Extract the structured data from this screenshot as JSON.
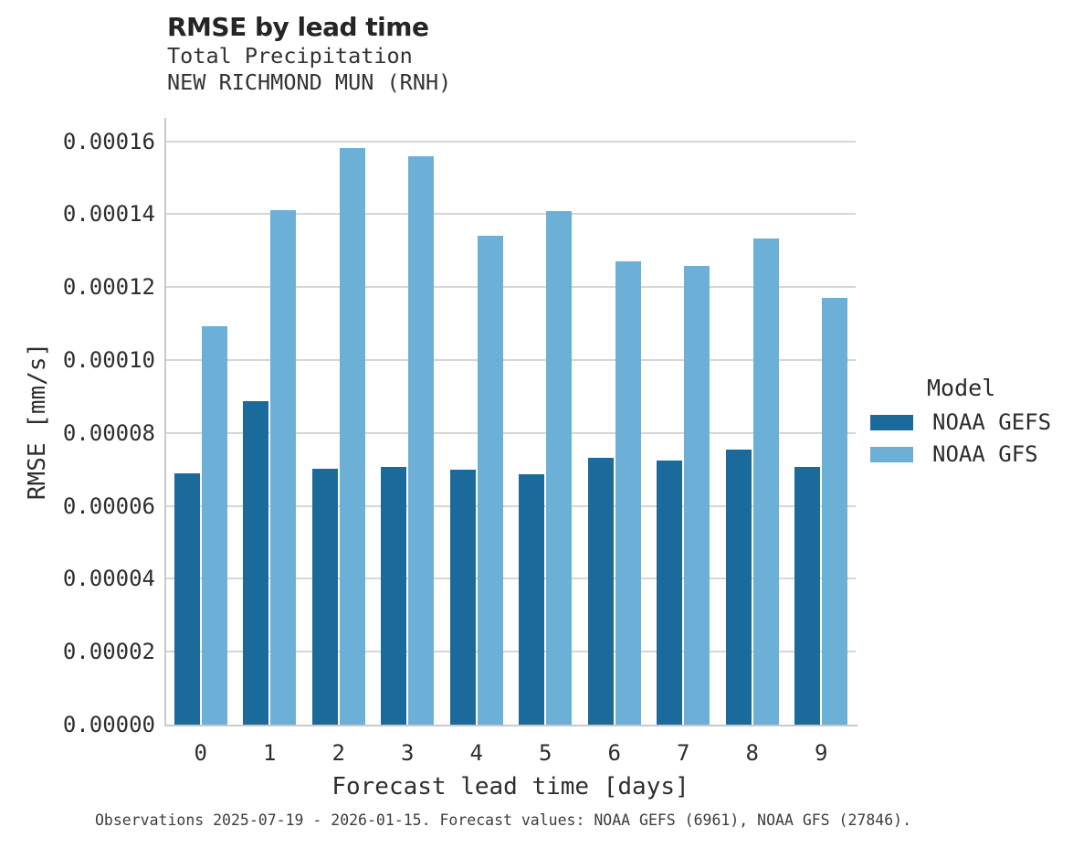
{
  "header": {
    "title": "RMSE by lead time",
    "subtitle1": "Total Precipitation",
    "subtitle2": "NEW RICHMOND MUN (RNH)"
  },
  "chart_data": {
    "type": "bar",
    "title": "RMSE by lead time",
    "subtitle": [
      "Total Precipitation",
      "NEW RICHMOND MUN (RNH)"
    ],
    "categories": [
      "0",
      "1",
      "2",
      "3",
      "4",
      "5",
      "6",
      "7",
      "8",
      "9"
    ],
    "series": [
      {
        "name": "NOAA GEFS",
        "color": "#1b6a9c",
        "values": [
          6.9e-05,
          8.87e-05,
          7.01e-05,
          7.07e-05,
          6.99e-05,
          6.88e-05,
          7.31e-05,
          7.24e-05,
          7.55e-05,
          7.06e-05
        ]
      },
      {
        "name": "NOAA GFS",
        "color": "#6cb0d7",
        "values": [
          0.0001094,
          0.0001412,
          0.0001581,
          0.000156,
          0.0001341,
          0.0001408,
          0.0001271,
          0.0001258,
          0.0001334,
          0.0001171
        ]
      }
    ],
    "xlabel": "Forecast lead time [days]",
    "ylabel": "RMSE [mm/s]",
    "ylim": [
      0,
      0.0001664
    ],
    "yticks": [
      0,
      2e-05,
      4e-05,
      6e-05,
      8e-05,
      0.0001,
      0.00012,
      0.00014,
      0.00016
    ],
    "ytick_labels": [
      "0.00000",
      "0.00002",
      "0.00004",
      "0.00006",
      "0.00008",
      "0.00010",
      "0.00012",
      "0.00014",
      "0.00016"
    ],
    "grid": "horizontal",
    "legend_title": "Model",
    "legend_position": "right",
    "gridline_color": "#d6d6d6",
    "spine_color": "#c9c9c9"
  },
  "caption": "Observations 2025-07-19 - 2026-01-15. Forecast values: NOAA GEFS (6961), NOAA GFS (27846)."
}
